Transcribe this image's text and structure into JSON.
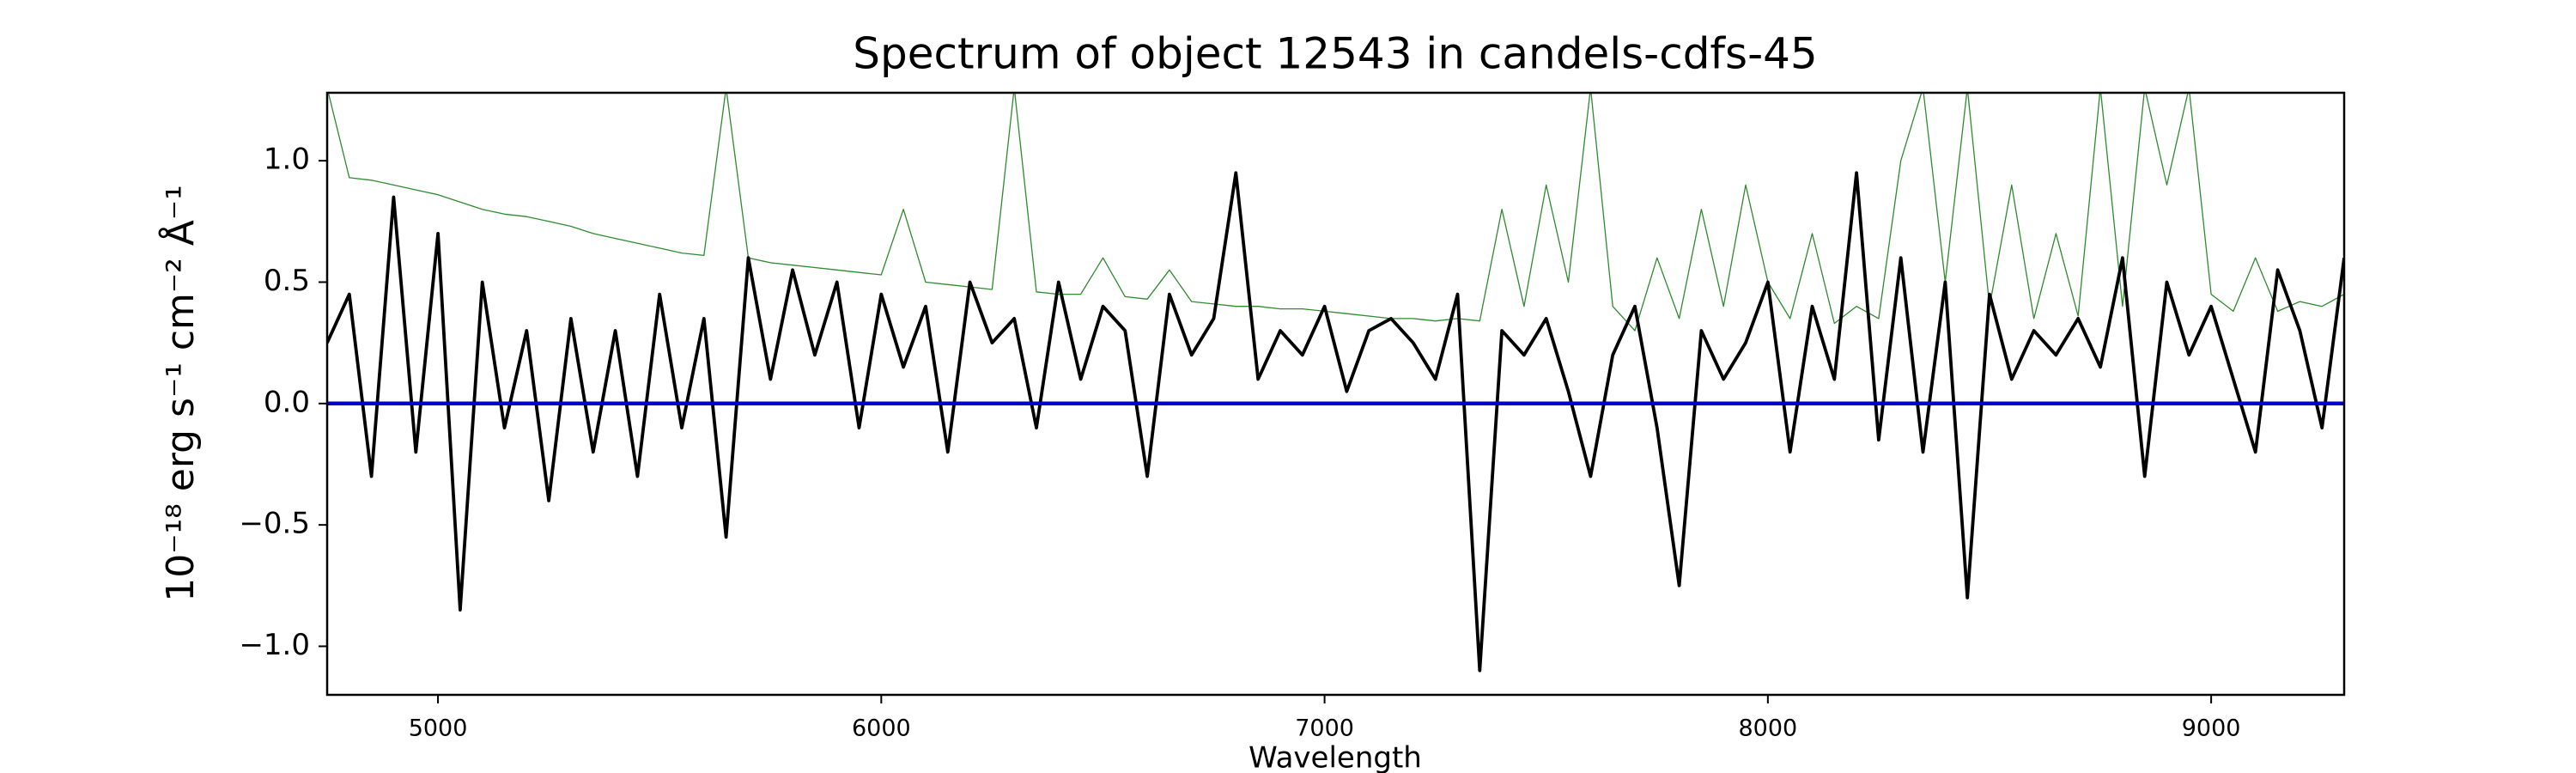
{
  "chart_data": {
    "type": "line",
    "title": "Spectrum of object 12543 in candels-cdfs-45",
    "xlabel": "Wavelength",
    "ylabel": "10⁻¹⁸ erg s⁻¹ cm⁻² Å⁻¹",
    "xlim": [
      4750,
      9300
    ],
    "ylim": [
      -1.2,
      1.28
    ],
    "xticks": [
      5000,
      6000,
      7000,
      8000,
      9000
    ],
    "yticks": [
      {
        "value": -1,
        "label": "−1.0"
      },
      {
        "value": -0.5,
        "label": "−0.5"
      },
      {
        "value": 0,
        "label": "0.0"
      },
      0.5,
      {
        "value": 1,
        "label": "1.0"
      }
    ],
    "series": [
      {
        "color": "#2e8b2e",
        "x": [
          4750,
          4800,
          4850,
          4900,
          4950,
          5000,
          5050,
          5100,
          5150,
          5200,
          5250,
          5300,
          5350,
          5400,
          5450,
          5500,
          5550,
          5600,
          5650,
          5700,
          5750,
          5800,
          5850,
          5900,
          5950,
          6000,
          6050,
          6100,
          6150,
          6200,
          6250,
          6300,
          6350,
          6400,
          6450,
          6500,
          6550,
          6600,
          6650,
          6700,
          6750,
          6800,
          6850,
          6900,
          6950,
          7000,
          7050,
          7100,
          7150,
          7200,
          7250,
          7300,
          7350,
          7400,
          7450,
          7500,
          7550,
          7600,
          7650,
          7700,
          7750,
          7800,
          7850,
          7900,
          7950,
          8000,
          8050,
          8100,
          8150,
          8200,
          8250,
          8300,
          8350,
          8400,
          8450,
          8500,
          8550,
          8600,
          8650,
          8700,
          8750,
          8800,
          8850,
          8900,
          8950,
          9000,
          9050,
          9100,
          9150,
          9200,
          9250,
          9300
        ],
        "values": [
          1.3,
          0.93,
          0.92,
          0.9,
          0.88,
          0.86,
          0.83,
          0.8,
          0.78,
          0.77,
          0.75,
          0.73,
          0.7,
          0.68,
          0.66,
          0.64,
          0.62,
          0.61,
          1.3,
          0.6,
          0.58,
          0.57,
          0.56,
          0.55,
          0.54,
          0.53,
          0.8,
          0.5,
          0.49,
          0.48,
          0.47,
          1.3,
          0.46,
          0.45,
          0.45,
          0.6,
          0.44,
          0.43,
          0.55,
          0.42,
          0.41,
          0.4,
          0.4,
          0.39,
          0.39,
          0.38,
          0.37,
          0.36,
          0.35,
          0.35,
          0.34,
          0.35,
          0.34,
          0.8,
          0.4,
          0.9,
          0.5,
          1.3,
          0.4,
          0.3,
          0.6,
          0.35,
          0.8,
          0.4,
          0.9,
          0.5,
          0.35,
          0.7,
          0.33,
          0.4,
          0.35,
          1.0,
          1.3,
          0.5,
          1.3,
          0.4,
          0.9,
          0.35,
          0.7,
          0.36,
          1.3,
          0.4,
          1.3,
          0.9,
          1.3,
          0.45,
          0.38,
          0.6,
          0.38,
          0.42,
          0.4,
          0.45
        ],
        "width": 1.3
      },
      {
        "color": "#000000",
        "x": [
          4750,
          4800,
          4850,
          4900,
          4950,
          5000,
          5050,
          5100,
          5150,
          5200,
          5250,
          5300,
          5350,
          5400,
          5450,
          5500,
          5550,
          5600,
          5650,
          5700,
          5750,
          5800,
          5850,
          5900,
          5950,
          6000,
          6050,
          6100,
          6150,
          6200,
          6250,
          6300,
          6350,
          6400,
          6450,
          6500,
          6550,
          6600,
          6650,
          6700,
          6750,
          6800,
          6850,
          6900,
          6950,
          7000,
          7050,
          7100,
          7150,
          7200,
          7250,
          7300,
          7350,
          7400,
          7450,
          7500,
          7550,
          7600,
          7650,
          7700,
          7750,
          7800,
          7850,
          7900,
          7950,
          8000,
          8050,
          8100,
          8150,
          8200,
          8250,
          8300,
          8350,
          8400,
          8450,
          8500,
          8550,
          8600,
          8650,
          8700,
          8750,
          8800,
          8850,
          8900,
          8950,
          9000,
          9050,
          9100,
          9150,
          9200,
          9250,
          9300
        ],
        "values": [
          0.25,
          0.45,
          -0.3,
          0.85,
          -0.2,
          0.7,
          -0.85,
          0.5,
          -0.1,
          0.3,
          -0.4,
          0.35,
          -0.2,
          0.3,
          -0.3,
          0.45,
          -0.1,
          0.35,
          -0.55,
          0.6,
          0.1,
          0.55,
          0.2,
          0.5,
          -0.1,
          0.45,
          0.15,
          0.4,
          -0.2,
          0.5,
          0.25,
          0.35,
          -0.1,
          0.5,
          0.1,
          0.4,
          0.3,
          -0.3,
          0.45,
          0.2,
          0.35,
          0.95,
          0.1,
          0.3,
          0.2,
          0.4,
          0.05,
          0.3,
          0.35,
          0.25,
          0.1,
          0.45,
          -1.1,
          0.3,
          0.2,
          0.35,
          0.05,
          -0.3,
          0.2,
          0.4,
          -0.1,
          -0.75,
          0.3,
          0.1,
          0.25,
          0.5,
          -0.2,
          0.4,
          0.1,
          0.95,
          -0.15,
          0.6,
          -0.2,
          0.5,
          -0.8,
          0.45,
          0.1,
          0.3,
          0.2,
          0.35,
          0.15,
          0.6,
          -0.3,
          0.5,
          0.2,
          0.4,
          0.1,
          -0.2,
          0.55,
          0.3,
          -0.1,
          0.6
        ],
        "width": 3.8
      },
      {
        "color": "#0000cc",
        "x": [
          4750,
          9300
        ],
        "values": [
          0,
          0
        ],
        "width": 4.5
      }
    ]
  }
}
